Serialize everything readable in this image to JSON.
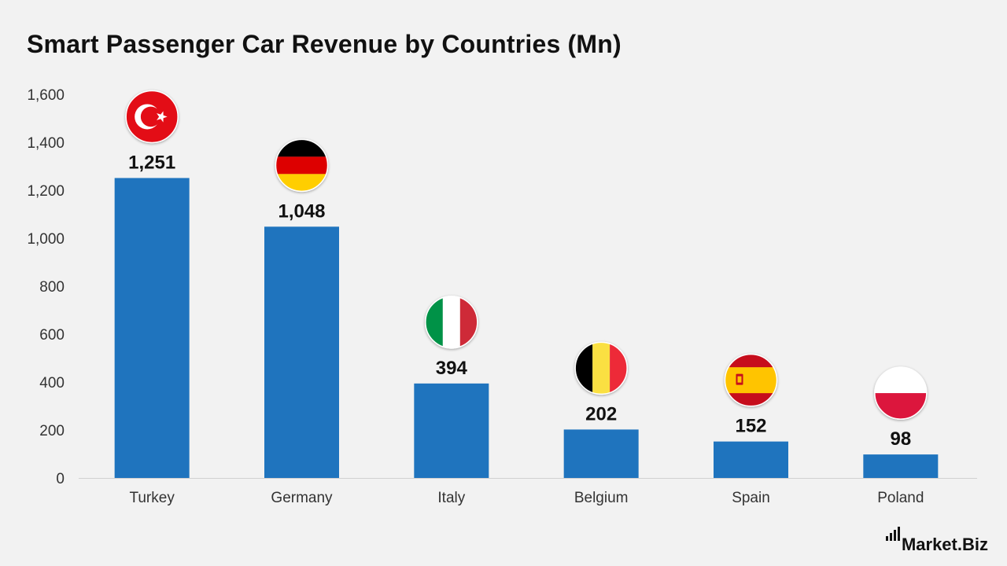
{
  "title": "Smart Passenger Car Revenue by Countries (Mn)",
  "brand": {
    "name": "Market",
    "suffix": ".Biz"
  },
  "colors": {
    "bar": "#1f74be",
    "axis": "#d0d0d0",
    "text": "#111111",
    "tick": "#333333",
    "background": "#f2f2f2"
  },
  "chart_data": {
    "type": "bar",
    "title": "Smart Passenger Car Revenue by Countries (Mn)",
    "categories": [
      "Turkey",
      "Germany",
      "Italy",
      "Belgium",
      "Spain",
      "Poland"
    ],
    "values": [
      1251,
      1048,
      394,
      202,
      152,
      98
    ],
    "value_labels": [
      "1,251",
      "1,048",
      "394",
      "202",
      "152",
      "98"
    ],
    "flags": [
      "turkey-flag-icon",
      "germany-flag-icon",
      "italy-flag-icon",
      "belgium-flag-icon",
      "spain-flag-icon",
      "poland-flag-icon"
    ],
    "yticks": [
      0,
      200,
      400,
      600,
      800,
      1000,
      1200,
      1400,
      1600
    ],
    "ytick_labels": [
      "0",
      "200",
      "400",
      "600",
      "800",
      "1,000",
      "1,200",
      "1,400",
      "1,600"
    ],
    "ylim": [
      0,
      1600
    ],
    "xlabel": "",
    "ylabel": "",
    "grid": false,
    "legend": "none"
  }
}
